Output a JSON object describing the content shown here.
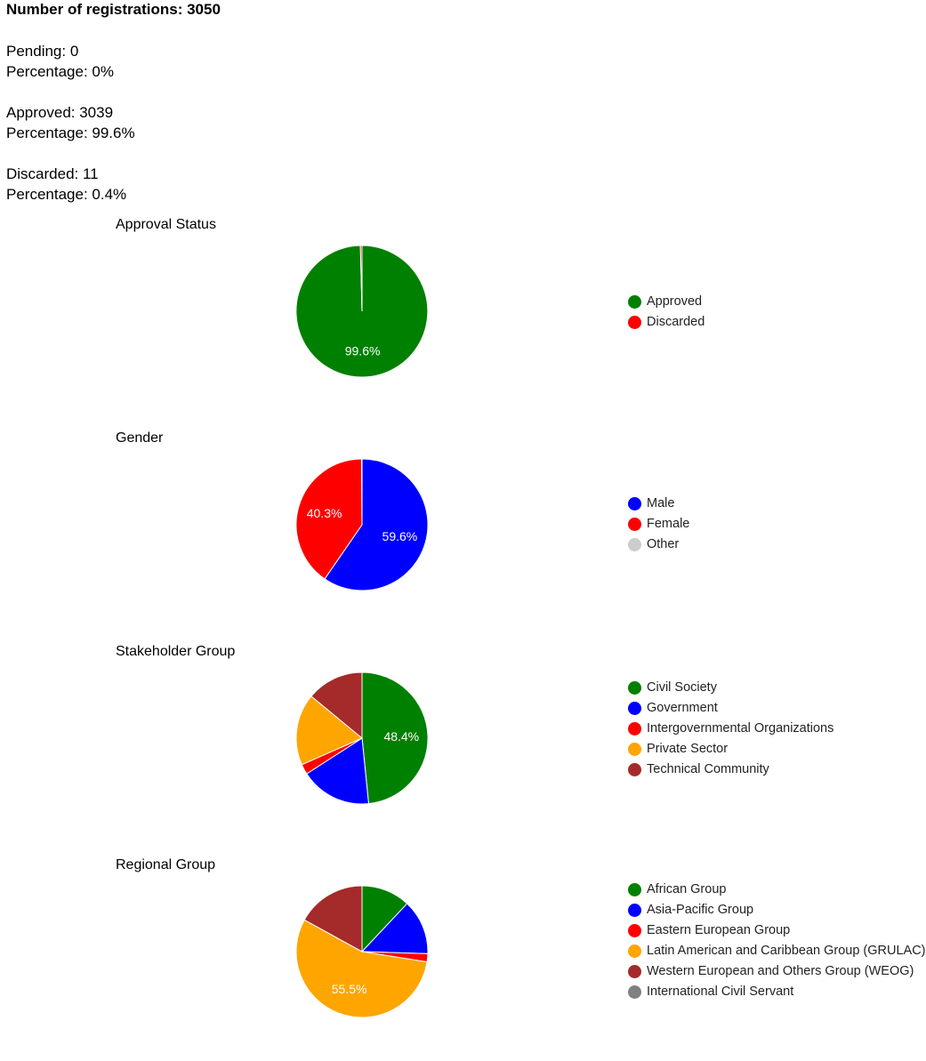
{
  "summary": {
    "title": "Number of registrations: 3050",
    "pending": "Pending: 0",
    "pending_pct": "Percentage: 0%",
    "approved": "Approved: 3039",
    "approved_pct": "Percentage: 99.6%",
    "discarded": "Discarded: 11",
    "discarded_pct": "Percentage: 0.4%"
  },
  "chart_data": [
    {
      "type": "pie",
      "title": "Approval Status",
      "labels": [
        "Approved",
        "Discarded"
      ],
      "values": [
        99.6,
        0.4
      ],
      "colors": [
        "#008000",
        "#ff0000"
      ],
      "slice_labels": [
        "99.6%",
        ""
      ],
      "legend_position": "right"
    },
    {
      "type": "pie",
      "title": "Gender",
      "labels": [
        "Male",
        "Female",
        "Other"
      ],
      "values": [
        59.6,
        40.3,
        0.1
      ],
      "colors": [
        "#0000ff",
        "#ff0000",
        "#cccccc"
      ],
      "slice_labels": [
        "59.6%",
        "40.3%",
        ""
      ],
      "legend_position": "right"
    },
    {
      "type": "pie",
      "title": "Stakeholder Group",
      "labels": [
        "Civil Society",
        "Government",
        "Intergovernmental Organizations",
        "Private Sector",
        "Technical Community"
      ],
      "values": [
        48.4,
        17.5,
        2.5,
        17.6,
        14.0
      ],
      "colors": [
        "#008000",
        "#0000ff",
        "#ff0000",
        "#ffa500",
        "#a52a2a"
      ],
      "slice_labels": [
        "48.4%",
        "",
        "",
        "",
        ""
      ],
      "legend_position": "right"
    },
    {
      "type": "pie",
      "title": "Regional Group",
      "labels": [
        "African Group",
        "Asia-Pacific Group",
        "Eastern European Group",
        "Latin American and Caribbean Group (GRULAC)",
        "Western European and Others Group (WEOG)",
        "International Civil Servant"
      ],
      "values": [
        12.0,
        13.5,
        2.0,
        55.5,
        17.0,
        0.0
      ],
      "colors": [
        "#008000",
        "#0000ff",
        "#ff0000",
        "#ffa500",
        "#a52a2a",
        "#808080"
      ],
      "slice_labels": [
        "",
        "",
        "",
        "55.5%",
        "",
        ""
      ],
      "legend_position": "right"
    }
  ]
}
